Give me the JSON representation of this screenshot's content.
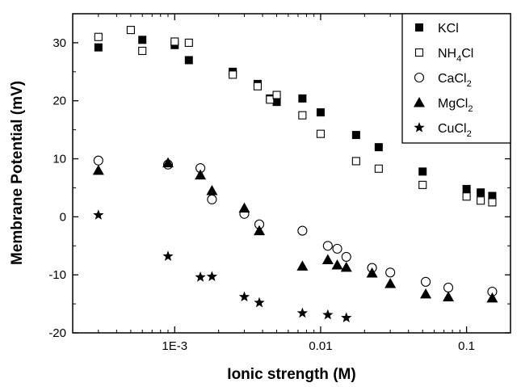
{
  "chart_data": {
    "type": "scatter",
    "xlabel": "Ionic strength (M)",
    "ylabel": "Membrane Potential (mV)",
    "xscale": "log",
    "xlim": [
      0.0002,
      0.2
    ],
    "ylim": [
      -20,
      35
    ],
    "x_ticks": [
      0.001,
      0.01,
      0.1
    ],
    "x_tick_labels": [
      "1E-3",
      "0.01",
      "0.1"
    ],
    "y_ticks": [
      -20,
      -10,
      0,
      10,
      20,
      30
    ],
    "y_tick_labels": [
      "-20",
      "-10",
      "0",
      "10",
      "20",
      "30"
    ],
    "grid": false,
    "legend_position": "top-right",
    "series": [
      {
        "name": "KCl",
        "legend_main": "KCl",
        "legend_sub": "",
        "marker": "filled-square",
        "x": [
          0.0003,
          0.0006,
          0.001,
          0.00125,
          0.0025,
          0.0037,
          0.0045,
          0.005,
          0.0075,
          0.01,
          0.0175,
          0.025,
          0.05,
          0.1,
          0.125,
          0.15
        ],
        "y": [
          29.2,
          30.5,
          29.6,
          27.0,
          25.0,
          22.9,
          20.4,
          19.8,
          20.4,
          18.0,
          14.1,
          12.0,
          7.8,
          4.8,
          4.2,
          3.6
        ]
      },
      {
        "name": "NH4Cl",
        "legend_main": "NH",
        "legend_sub": "4",
        "legend_tail": "Cl",
        "marker": "open-square",
        "x": [
          0.0003,
          0.0005,
          0.0006,
          0.001,
          0.00125,
          0.0025,
          0.0037,
          0.0045,
          0.005,
          0.0075,
          0.01,
          0.0175,
          0.025,
          0.05,
          0.1,
          0.125,
          0.15
        ],
        "y": [
          31.0,
          32.2,
          28.6,
          30.2,
          30.0,
          24.5,
          22.5,
          20.2,
          21.0,
          17.5,
          14.3,
          9.6,
          8.3,
          5.5,
          3.5,
          2.8,
          2.5
        ]
      },
      {
        "name": "CaCl2",
        "legend_main": "CaCl",
        "legend_sub": "2",
        "legend_tail": "",
        "marker": "open-circle",
        "x": [
          0.0003,
          0.0009,
          0.0015,
          0.0018,
          0.003,
          0.0038,
          0.0075,
          0.0112,
          0.013,
          0.015,
          0.0225,
          0.03,
          0.0525,
          0.075,
          0.15
        ],
        "y": [
          9.7,
          9.0,
          8.4,
          3.0,
          0.5,
          -1.3,
          -2.4,
          -5.0,
          -5.5,
          -6.9,
          -8.8,
          -9.6,
          -11.2,
          -12.2,
          -12.9
        ]
      },
      {
        "name": "MgCl2",
        "legend_main": "MgCl",
        "legend_sub": "2",
        "legend_tail": "",
        "marker": "filled-triangle",
        "x": [
          0.0003,
          0.0009,
          0.0015,
          0.0018,
          0.003,
          0.0038,
          0.0075,
          0.0112,
          0.013,
          0.015,
          0.0225,
          0.03,
          0.0525,
          0.075,
          0.15
        ],
        "y": [
          8.0,
          9.3,
          7.2,
          4.5,
          1.5,
          -2.4,
          -8.5,
          -7.4,
          -8.3,
          -8.7,
          -9.7,
          -11.5,
          -13.3,
          -13.8,
          -14.0
        ]
      },
      {
        "name": "CuCl2",
        "legend_main": "CuCl",
        "legend_sub": "2",
        "legend_tail": "",
        "marker": "filled-star",
        "x": [
          0.0003,
          0.0009,
          0.0015,
          0.0018,
          0.003,
          0.0038,
          0.0075,
          0.0112,
          0.015
        ],
        "y": [
          0.3,
          -6.8,
          -10.4,
          -10.3,
          -13.8,
          -14.8,
          -16.6,
          -16.9,
          -17.4
        ]
      }
    ]
  }
}
